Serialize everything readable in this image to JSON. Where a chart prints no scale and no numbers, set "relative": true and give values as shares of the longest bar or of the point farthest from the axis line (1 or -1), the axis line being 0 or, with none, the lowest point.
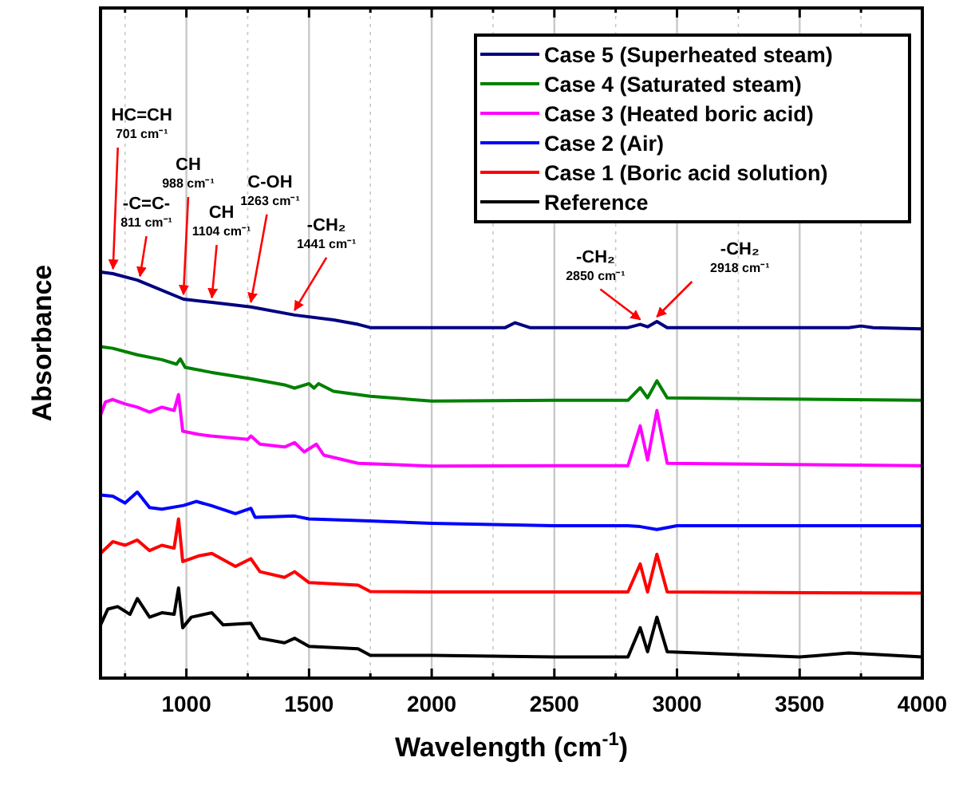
{
  "chart_data": {
    "type": "line",
    "relative": true,
    "xlabel": "Wavelength (cm$^{-1}$)",
    "ylabel": "Absorbance",
    "xlim": [
      650,
      4000
    ],
    "xticks": [
      {
        "value": 750,
        "label": null
      },
      1000,
      {
        "value": 1250,
        "label": null
      },
      1500,
      {
        "value": 1750,
        "label": null
      },
      2000,
      {
        "value": 2250,
        "label": null
      },
      2500,
      {
        "value": 2750,
        "label": null
      },
      3000,
      {
        "value": 3250,
        "label": null
      },
      3500,
      {
        "value": 3750,
        "label": null
      },
      4000
    ],
    "grid": "x",
    "legend": "top right",
    "line_style": "solid",
    "marker": "none",
    "series": [
      {
        "name": "Case 5 (Superheated steam)",
        "color": "#000080",
        "x": [
          650,
          700,
          800,
          988,
          1104,
          1263,
          1441,
          1600,
          1700,
          1750,
          2000,
          2300,
          2340,
          2400,
          2800,
          2850,
          2880,
          2918,
          2960,
          3700,
          3750,
          3800,
          4000
        ],
        "values": [
          1.0,
          0.996,
          0.98,
          0.933,
          0.925,
          0.914,
          0.894,
          0.882,
          0.871,
          0.863,
          0.863,
          0.863,
          0.875,
          0.863,
          0.863,
          0.871,
          0.865,
          0.878,
          0.863,
          0.863,
          0.867,
          0.863,
          0.86
        ]
      },
      {
        "name": "Case 4 (Saturated steam)",
        "color": "#008000",
        "x": [
          650,
          700,
          800,
          900,
          960,
          975,
          995,
          1100,
          1263,
          1400,
          1441,
          1500,
          1520,
          1539,
          1600,
          1750,
          2000,
          2500,
          2800,
          2850,
          2880,
          2918,
          2960,
          4000
        ],
        "values": [
          0.816,
          0.812,
          0.796,
          0.784,
          0.773,
          0.786,
          0.765,
          0.753,
          0.737,
          0.722,
          0.714,
          0.725,
          0.714,
          0.725,
          0.706,
          0.694,
          0.682,
          0.684,
          0.684,
          0.715,
          0.69,
          0.732,
          0.69,
          0.684
        ]
      },
      {
        "name": "Case 3 (Heated boric acid)",
        "color": "#ff00ff",
        "x": [
          650,
          670,
          700,
          750,
          800,
          850,
          900,
          950,
          968,
          985,
          1050,
          1100,
          1250,
          1263,
          1300,
          1400,
          1441,
          1480,
          1530,
          1560,
          1700,
          2000,
          2500,
          2800,
          2850,
          2880,
          2918,
          2960,
          4000
        ],
        "values": [
          0.647,
          0.68,
          0.686,
          0.675,
          0.667,
          0.655,
          0.667,
          0.659,
          0.698,
          0.608,
          0.6,
          0.596,
          0.588,
          0.596,
          0.576,
          0.569,
          0.58,
          0.557,
          0.576,
          0.549,
          0.529,
          0.522,
          0.523,
          0.523,
          0.621,
          0.537,
          0.659,
          0.529,
          0.523
        ]
      },
      {
        "name": "Case 2 (Air)",
        "color": "#0000ff",
        "x": [
          650,
          700,
          750,
          800,
          850,
          900,
          988,
          1040,
          1100,
          1200,
          1263,
          1280,
          1441,
          1500,
          1700,
          2000,
          2500,
          2800,
          2850,
          2918,
          3000,
          4000
        ],
        "values": [
          0.451,
          0.448,
          0.431,
          0.458,
          0.42,
          0.416,
          0.425,
          0.435,
          0.425,
          0.405,
          0.418,
          0.396,
          0.399,
          0.392,
          0.388,
          0.381,
          0.375,
          0.375,
          0.373,
          0.366,
          0.375,
          0.375
        ]
      },
      {
        "name": "Case 1 (Boric acid solution)",
        "color": "#ff0000",
        "x": [
          650,
          700,
          750,
          800,
          850,
          900,
          950,
          968,
          985,
          1050,
          1104,
          1200,
          1263,
          1300,
          1400,
          1441,
          1500,
          1700,
          1750,
          2000,
          2500,
          2800,
          2850,
          2880,
          2918,
          2960,
          4000
        ],
        "values": [
          0.307,
          0.336,
          0.327,
          0.34,
          0.314,
          0.327,
          0.32,
          0.392,
          0.287,
          0.301,
          0.307,
          0.275,
          0.294,
          0.262,
          0.248,
          0.262,
          0.235,
          0.229,
          0.213,
          0.212,
          0.212,
          0.212,
          0.281,
          0.212,
          0.305,
          0.212,
          0.209
        ]
      },
      {
        "name": "Reference",
        "color": "#000000",
        "x": [
          650,
          680,
          720,
          770,
          800,
          850,
          900,
          950,
          968,
          985,
          1020,
          1104,
          1150,
          1263,
          1300,
          1400,
          1441,
          1500,
          1700,
          1750,
          2000,
          2500,
          2800,
          2850,
          2880,
          2918,
          2960,
          3500,
          3700,
          4000
        ],
        "values": [
          0.131,
          0.17,
          0.176,
          0.157,
          0.196,
          0.15,
          0.161,
          0.157,
          0.222,
          0.124,
          0.15,
          0.161,
          0.131,
          0.135,
          0.098,
          0.087,
          0.098,
          0.078,
          0.072,
          0.056,
          0.056,
          0.052,
          0.052,
          0.124,
          0.065,
          0.15,
          0.065,
          0.052,
          0.062,
          0.052
        ]
      }
    ],
    "annotations": [
      {
        "text": "HC=CH\n701 cm⁻¹",
        "x": 701,
        "y": 0.996
      },
      {
        "text": "-C=C-\n811 cm⁻¹",
        "x": 811,
        "y": 0.978
      },
      {
        "text": "CH\n988 cm⁻¹",
        "x": 988,
        "y": 0.933
      },
      {
        "text": "CH\n1104 cm⁻¹",
        "x": 1104,
        "y": 0.925
      },
      {
        "text": "C-OH\n1263 cm⁻¹",
        "x": 1263,
        "y": 0.914
      },
      {
        "text": "-CH₂\n1441 cm⁻¹",
        "x": 1441,
        "y": 0.894
      },
      {
        "text": "-CH₂\n2850 cm⁻¹",
        "x": 2850,
        "y": 0.871
      },
      {
        "text": "-CH₂\n2918 cm⁻¹",
        "x": 2918,
        "y": 0.878
      }
    ]
  }
}
